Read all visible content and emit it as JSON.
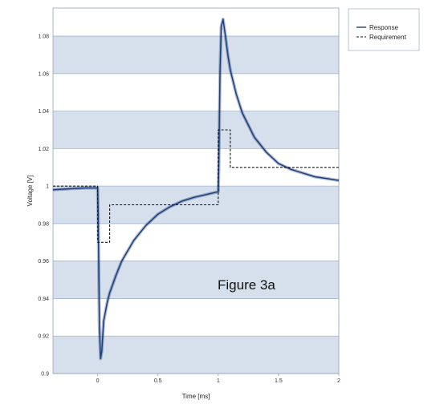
{
  "chart_data": {
    "type": "line",
    "xlabel": "Time [ms]",
    "ylabel": "Voltage [V]",
    "xlim": [
      -0.37,
      2
    ],
    "ylim": [
      0.9,
      1.095
    ],
    "x_ticks": [
      "0",
      "0.5",
      "1",
      "1.5",
      "2"
    ],
    "y_ticks": [
      "0.9",
      "0.92",
      "0.94",
      "0.96",
      "0.98",
      "1",
      "1.02",
      "1.04",
      "1.06",
      "1.08"
    ],
    "grid": "horizontal alternating bands",
    "legend_position": "top-right",
    "annotation": "Figure 3a",
    "colors": {
      "response": "#1f3f7a",
      "requirement": "#111111",
      "band": "#d6e0ec",
      "gridline": "#9fb4cc"
    },
    "series": [
      {
        "name": "Response",
        "style": "solid",
        "x": [
          -0.37,
          -0.3,
          -0.2,
          -0.1,
          0.0,
          0.005,
          0.015,
          0.025,
          0.035,
          0.05,
          0.08,
          0.1,
          0.15,
          0.2,
          0.3,
          0.4,
          0.5,
          0.6,
          0.7,
          0.8,
          0.9,
          1.0,
          1.005,
          1.015,
          1.025,
          1.04,
          1.06,
          1.08,
          1.1,
          1.15,
          1.2,
          1.3,
          1.4,
          1.5,
          1.6,
          1.7,
          1.8,
          1.9,
          2.0
        ],
        "y": [
          0.998,
          0.9983,
          0.9987,
          0.999,
          0.999,
          0.985,
          0.925,
          0.908,
          0.912,
          0.928,
          0.938,
          0.943,
          0.952,
          0.96,
          0.971,
          0.979,
          0.985,
          0.989,
          0.992,
          0.994,
          0.9955,
          0.997,
          1.01,
          1.06,
          1.085,
          1.089,
          1.08,
          1.07,
          1.062,
          1.049,
          1.039,
          1.026,
          1.018,
          1.012,
          1.009,
          1.007,
          1.005,
          1.004,
          1.003
        ]
      },
      {
        "name": "Requirement",
        "style": "dashed",
        "x": [
          -0.37,
          0.0,
          0.0,
          0.05,
          0.05,
          0.1,
          0.1,
          1.0,
          1.0,
          1.05,
          1.05,
          1.1,
          1.1,
          2.0
        ],
        "y": [
          1.0,
          1.0,
          0.97,
          0.97,
          0.97,
          0.97,
          0.99,
          0.99,
          1.03,
          1.03,
          1.03,
          1.03,
          1.01,
          1.01
        ]
      }
    ]
  }
}
